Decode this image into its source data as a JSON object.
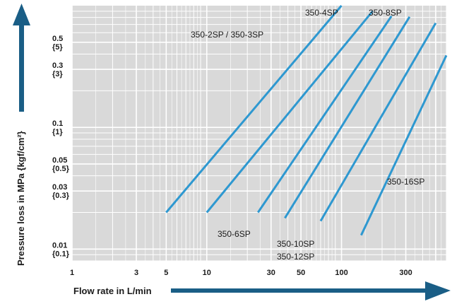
{
  "chart_data": {
    "type": "line",
    "x_scale": "log",
    "y_scale": "log",
    "xlim": [
      1,
      600
    ],
    "ylim": [
      0.008,
      1
    ],
    "grid": true,
    "xlabel": "Flow rate in L/min",
    "ylabel": "Pressure loss in MPa {kgf/cm²}",
    "x_ticks": [
      "1",
      "3",
      "5",
      "10",
      "30",
      "50",
      "100",
      "300"
    ],
    "y_ticks": [
      {
        "value": 0.5,
        "label": "0.5",
        "sub": "{5}"
      },
      {
        "value": 0.3,
        "label": "0.3",
        "sub": "{3}"
      },
      {
        "value": 0.1,
        "label": "0.1",
        "sub": "{1}"
      },
      {
        "value": 0.05,
        "label": "0.05",
        "sub": "{0.5}"
      },
      {
        "value": 0.03,
        "label": "0.03",
        "sub": "{0.3}"
      },
      {
        "value": 0.01,
        "label": "0.01",
        "sub": "{0.1}"
      }
    ],
    "series": [
      {
        "name": "350-2SP / 350-3SP",
        "x": [
          5,
          100
        ],
        "y": [
          0.02,
          1
        ]
      },
      {
        "name": "350-4SP",
        "x": [
          10,
          170
        ],
        "y": [
          0.02,
          0.9
        ]
      },
      {
        "name": "350-6SP",
        "x": [
          24,
          235
        ],
        "y": [
          0.02,
          0.82
        ]
      },
      {
        "name": "350-8SP",
        "x": [
          38,
          320
        ],
        "y": [
          0.018,
          0.81
        ]
      },
      {
        "name": "350-10SP",
        "x": [
          70,
          500
        ],
        "y": [
          0.017,
          0.72
        ]
      },
      {
        "name": "350-12SP",
        "x": [
          140,
          600
        ],
        "y": [
          0.013,
          0.39
        ]
      },
      {
        "name": "350-16SP",
        "x": [],
        "y": []
      }
    ],
    "line_color": "#2e98d0",
    "arrow_color": "#1a5e86",
    "grid_color": "#ffffff",
    "plot_bg": "#d9d9d9"
  }
}
